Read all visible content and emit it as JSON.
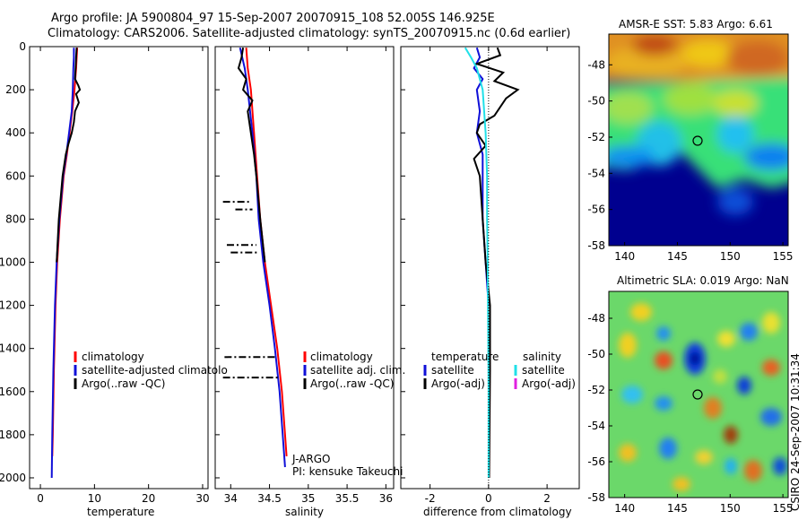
{
  "header": {
    "title_line1": "Argo profile: JA 5900804_97 15-Sep-2007 20070915_108 52.005S 146.925E",
    "title_line2": "Climatology: CARS2006. Satellite-adjusted climatology: synTS_20070915.nc (0.6d earlier)"
  },
  "side_label": "CSIRO 24-Sep-2007 10:31:34",
  "colors": {
    "climatology": "#ff0000",
    "satellite": "#1010d8",
    "argo": "#000000",
    "salinity_satellite": "#20e0e8",
    "argo_adj": "#e020e0",
    "ocean_deep": "#00008f"
  },
  "chart_data": [
    {
      "type": "line",
      "id": "temperature",
      "xlabel": "temperature",
      "xlim": [
        -2,
        31
      ],
      "ylim": [
        0,
        2050
      ],
      "y_inverted": true,
      "xticks": [
        0,
        10,
        20,
        30
      ],
      "yticks": [
        0,
        200,
        400,
        600,
        800,
        1000,
        1200,
        1400,
        1600,
        1800,
        2000
      ],
      "legend": [
        "climatology",
        "satellite-adjusted climatolo",
        "Argo(..raw -QC)"
      ],
      "series": [
        {
          "name": "climatology",
          "depth": [
            5,
            50,
            100,
            200,
            300,
            400,
            500,
            600,
            800,
            1000,
            1200,
            1500,
            1800,
            1900
          ],
          "values": [
            6.8,
            6.7,
            6.6,
            6.3,
            5.9,
            5.4,
            4.9,
            4.3,
            3.6,
            3.1,
            2.8,
            2.5,
            2.3,
            2.2
          ]
        },
        {
          "name": "satellite-adjusted climatolo",
          "depth": [
            5,
            50,
            100,
            200,
            300,
            400,
            500,
            600,
            800,
            1000,
            1200,
            1500,
            1800,
            2000
          ],
          "values": [
            6.2,
            6.2,
            6.1,
            6.0,
            5.8,
            5.3,
            4.8,
            4.2,
            3.5,
            3.0,
            2.7,
            2.4,
            2.2,
            2.1
          ]
        },
        {
          "name": "Argo(..raw -QC)",
          "depth": [
            5,
            50,
            100,
            150,
            180,
            200,
            220,
            260,
            300,
            350,
            400,
            450,
            500,
            600,
            800,
            1000
          ],
          "values": [
            6.7,
            6.6,
            6.5,
            6.4,
            7.0,
            7.3,
            6.6,
            7.1,
            6.4,
            6.2,
            5.8,
            5.2,
            4.7,
            4.1,
            3.4,
            3.0
          ]
        }
      ]
    },
    {
      "type": "line",
      "id": "salinity",
      "xlabel": "salinity",
      "xlim": [
        33.8,
        36.1
      ],
      "ylim": [
        0,
        2050
      ],
      "y_inverted": true,
      "xticks": [
        34,
        34.5,
        35,
        35.5,
        36
      ],
      "legend": [
        "climatology",
        "satellite adj. clim.",
        "Argo(..raw -QC)"
      ],
      "annotation": [
        "J-ARGO",
        "PI: kensuke Takeuchi"
      ],
      "series": [
        {
          "name": "climatology",
          "depth": [
            5,
            100,
            200,
            400,
            600,
            800,
            1000,
            1200,
            1400,
            1600,
            1800,
            1900
          ],
          "values": [
            34.2,
            34.22,
            34.26,
            34.3,
            34.34,
            34.38,
            34.44,
            34.52,
            34.6,
            34.66,
            34.7,
            34.72
          ]
        },
        {
          "name": "satellite adj. clim.",
          "depth": [
            5,
            100,
            200,
            400,
            600,
            800,
            1000,
            1200,
            1400,
            1600,
            1800,
            1950
          ],
          "values": [
            34.12,
            34.18,
            34.22,
            34.28,
            34.33,
            34.36,
            34.42,
            34.5,
            34.57,
            34.63,
            34.67,
            34.7
          ]
        },
        {
          "name": "Argo(..raw -QC)",
          "depth": [
            5,
            50,
            100,
            150,
            200,
            250,
            300,
            400,
            500,
            600,
            800,
            1000
          ],
          "values": [
            34.16,
            34.14,
            34.1,
            34.2,
            34.16,
            34.28,
            34.22,
            34.26,
            34.3,
            34.33,
            34.38,
            34.44
          ]
        }
      ],
      "spikes": [
        {
          "depth": 720,
          "x0": 33.9,
          "x1": 34.26
        },
        {
          "depth": 755,
          "x0": 34.06,
          "x1": 34.28
        },
        {
          "depth": 920,
          "x0": 33.95,
          "x1": 34.33
        },
        {
          "depth": 955,
          "x0": 34.0,
          "x1": 34.36
        },
        {
          "depth": 1440,
          "x0": 33.92,
          "x1": 34.6
        },
        {
          "depth": 1535,
          "x0": 33.9,
          "x1": 34.62
        }
      ]
    },
    {
      "type": "line",
      "id": "difference",
      "xlabel": "difference from climatology",
      "xlim": [
        -3,
        3.1
      ],
      "ylim": [
        0,
        2050
      ],
      "y_inverted": true,
      "xticks": [
        -2,
        0,
        2
      ],
      "legend": [
        "temperature",
        "satellite",
        "Argo(-adj)",
        "salinity",
        "satellite",
        "Argo(-adj)"
      ],
      "series": [
        {
          "name": "temperature satellite",
          "depth": [
            5,
            50,
            100,
            150,
            200,
            300,
            400,
            500,
            600,
            800,
            1000,
            1200
          ],
          "values": [
            -0.4,
            -0.3,
            -0.5,
            -0.2,
            -0.4,
            -0.3,
            -0.4,
            -0.2,
            -0.2,
            -0.2,
            -0.1,
            0
          ]
        },
        {
          "name": "temperature Argo(-adj)",
          "depth": [
            5,
            40,
            80,
            120,
            160,
            200,
            240,
            280,
            320,
            360,
            400,
            460,
            520,
            600,
            800,
            1000,
            1200,
            1500,
            2000
          ],
          "values": [
            0.3,
            0.4,
            -0.4,
            0.5,
            0.2,
            1.0,
            0.6,
            0.4,
            0.2,
            -0.3,
            -0.4,
            -0.1,
            -0.5,
            -0.3,
            -0.2,
            -0.1,
            0.05,
            0.05,
            0.02
          ]
        },
        {
          "name": "salinity satellite",
          "depth": [
            5,
            50,
            100,
            200,
            400,
            600,
            800,
            1000,
            1200,
            1600,
            2000
          ],
          "values": [
            -0.8,
            -0.6,
            -0.4,
            -0.2,
            -0.1,
            -0.05,
            -0.05,
            -0.03,
            -0.02,
            0,
            0
          ]
        }
      ]
    },
    {
      "type": "heatmap",
      "id": "amsre_sst",
      "title": "AMSR-E SST: 5.83 Argo: 6.61",
      "xticks": [
        140,
        145,
        150,
        155
      ],
      "yticks": [
        -48,
        -50,
        -52,
        -54,
        -56,
        -58
      ],
      "xlim": [
        138.5,
        155.5
      ],
      "ylim": [
        -58,
        -46.3
      ],
      "marker": {
        "lon": 146.925,
        "lat": -52.005
      }
    },
    {
      "type": "heatmap",
      "id": "altimetric_sla",
      "title": "Altimetric SLA: 0.019 Argo: NaN",
      "xticks": [
        140,
        145,
        150,
        155
      ],
      "yticks": [
        -48,
        -50,
        -52,
        -54,
        -56,
        -58
      ],
      "xlim": [
        138.5,
        155.5
      ],
      "ylim": [
        -58,
        -46.5
      ],
      "marker": {
        "lon": 146.925,
        "lat": -52.005
      }
    }
  ]
}
